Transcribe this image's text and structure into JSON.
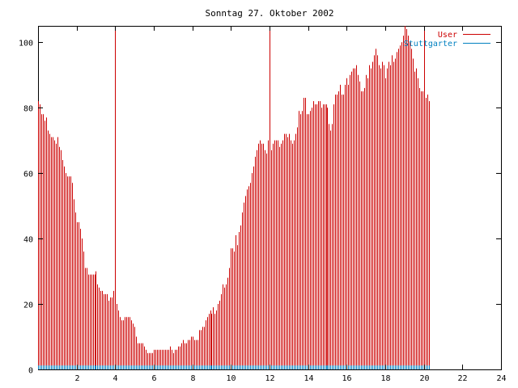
{
  "chart_data": {
    "type": "bar",
    "title": "Sonntag 27. Oktober 2002",
    "xlabel": "",
    "ylabel": "",
    "xlim": [
      0,
      24
    ],
    "ylim": [
      0,
      105
    ],
    "x_ticks": [
      2,
      4,
      6,
      8,
      10,
      12,
      14,
      16,
      18,
      20,
      22,
      24
    ],
    "x_tick_labels": [
      "2",
      "4",
      "6",
      "8",
      "10",
      "12",
      "14",
      "16",
      "18",
      "20",
      "22",
      "24"
    ],
    "y_ticks": [
      0,
      20,
      40,
      60,
      80,
      100
    ],
    "y_tick_labels": [
      "0",
      "20",
      "40",
      "60",
      "80",
      "100"
    ],
    "grid": false,
    "legend_position": "top-right",
    "series": [
      {
        "name": "User",
        "color": "#cc0000",
        "style": "impulses",
        "x_start": 0,
        "x_step": 0.0833333,
        "values": [
          82,
          81,
          78,
          78,
          76,
          77,
          73,
          72,
          71,
          71,
          70,
          69,
          71,
          68,
          67,
          64,
          62,
          60,
          59,
          59,
          59,
          57,
          52,
          48,
          45,
          45,
          43,
          40,
          36,
          31,
          31,
          29,
          29,
          29,
          29,
          29,
          30,
          26,
          25,
          24,
          24,
          23,
          23,
          23,
          21,
          22,
          22,
          24,
          22,
          20,
          18,
          16,
          15,
          15,
          16,
          16,
          16,
          16,
          15,
          14,
          13,
          10,
          8,
          8,
          8,
          8,
          7,
          6,
          5,
          5,
          5,
          5,
          6,
          6,
          6,
          6,
          6,
          6,
          6,
          6,
          6,
          6,
          7,
          6,
          5,
          6,
          6,
          7,
          7,
          8,
          9,
          8,
          8,
          9,
          9,
          10,
          10,
          9,
          9,
          9,
          12,
          12,
          13,
          13,
          15,
          16,
          17,
          18,
          17,
          19,
          17,
          18,
          20,
          21,
          23,
          26,
          25,
          26,
          28,
          31,
          37,
          37,
          36,
          41,
          38,
          42,
          44,
          48,
          51,
          53,
          55,
          56,
          57,
          60,
          62,
          65,
          67,
          69,
          70,
          69,
          69,
          67,
          66,
          70,
          70,
          67,
          69,
          70,
          70,
          70,
          68,
          69,
          70,
          72,
          72,
          71,
          72,
          70,
          69,
          70,
          72,
          74,
          79,
          78,
          79,
          83,
          83,
          78,
          78,
          79,
          80,
          82,
          81,
          81,
          82,
          82,
          80,
          81,
          81,
          81,
          80,
          75,
          73,
          75,
          81,
          84,
          84,
          85,
          87,
          84,
          84,
          87,
          89,
          87,
          90,
          91,
          92,
          92,
          93,
          90,
          88,
          85,
          85,
          86,
          90,
          89,
          93,
          92,
          94,
          96,
          98,
          96,
          93,
          92,
          94,
          93,
          89,
          92,
          94,
          93,
          96,
          94,
          95,
          97,
          98,
          99,
          100,
          102,
          105,
          104,
          102,
          100,
          98,
          95,
          91,
          92,
          89,
          86,
          85,
          85,
          80,
          83,
          84,
          82
        ]
      },
      {
        "name": "Stuttgarter",
        "color": "#0080c0",
        "style": "impulses",
        "x_start": 0,
        "x_step": 0.0833333,
        "value": 1.2
      }
    ],
    "highlight_x": [
      4,
      12,
      20
    ]
  }
}
